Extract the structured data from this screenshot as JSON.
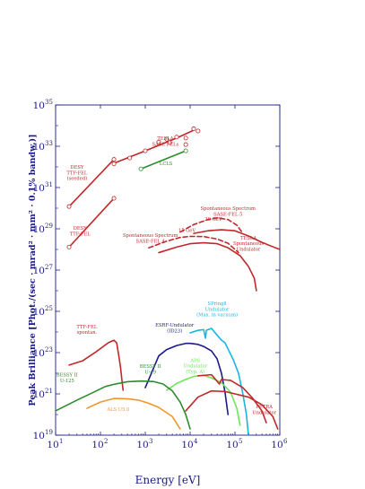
{
  "chart_data": {
    "type": "line",
    "title": "",
    "xlabel": "Energy [eV]",
    "ylabel": "Peak Brilliance [Phot./(sec · mrad² · mm² · 0.1% bandw.)]",
    "xscale": "log",
    "yscale": "log",
    "xlim": [
      10,
      1000000
    ],
    "ylim": [
      1e+19,
      1e+35
    ],
    "grid": false,
    "legend": "none",
    "x_ticks": [
      {
        "value": 10,
        "base": "10",
        "exp": "1"
      },
      {
        "value": 100,
        "base": "10",
        "exp": "2"
      },
      {
        "value": 1000,
        "base": "10",
        "exp": "3"
      },
      {
        "value": 10000,
        "base": "10",
        "exp": "4"
      },
      {
        "value": 100000,
        "base": "10",
        "exp": "5"
      },
      {
        "value": 1000000,
        "base": "10",
        "exp": "6"
      }
    ],
    "y_ticks": [
      {
        "value": 1e+19,
        "base": "10",
        "exp": "19"
      },
      {
        "value": 1e+21,
        "base": "10",
        "exp": "21"
      },
      {
        "value": 1e+23,
        "base": "10",
        "exp": "23"
      },
      {
        "value": 1e+25,
        "base": "10",
        "exp": "25"
      },
      {
        "value": 1e+27,
        "base": "10",
        "exp": "27"
      },
      {
        "value": 1e+29,
        "base": "10",
        "exp": "29"
      },
      {
        "value": 1e+31,
        "base": "10",
        "exp": "31"
      },
      {
        "value": 1e+33,
        "base": "10",
        "exp": "33"
      },
      {
        "value": 1e+35,
        "base": "10",
        "exp": "35"
      }
    ],
    "colors": {
      "axis": "#1a1a80",
      "red": "#c0282a",
      "green": "#2e8b2e",
      "navy": "#1a1a8c",
      "cyan": "#19b4e6",
      "lime": "#6ee65a",
      "orange": "#f0962d"
    },
    "series": [
      {
        "color": "red",
        "dashed": false,
        "markers": "none",
        "points": [
          [
            20,
            1.2e+30
          ],
          [
            200,
            2.3e+32
          ]
        ]
      },
      {
        "color": "red",
        "dashed": false,
        "markers": "circle",
        "points": [
          [
            20,
            1.2e+30
          ],
          [
            200,
            2.3e+32
          ]
        ]
      },
      {
        "color": "red",
        "dashed": false,
        "markers": "none",
        "points": [
          [
            20,
            1.3e+28
          ],
          [
            200,
            3e+30
          ]
        ]
      },
      {
        "color": "red",
        "dashed": false,
        "markers": "circle",
        "points": [
          [
            20,
            1.3e+28
          ],
          [
            200,
            3e+30
          ]
        ]
      },
      {
        "color": "red",
        "dashed": false,
        "markers": "none",
        "points": [
          [
            200,
            1.5e+32
          ],
          [
            1000,
            6e+32
          ],
          [
            5000,
            2.5e+33
          ],
          [
            12000,
            6e+33
          ]
        ]
      },
      {
        "color": "red",
        "dashed": false,
        "markers": "circle",
        "points": [
          [
            200,
            1.4e+32
          ],
          [
            450,
            2.7e+32
          ],
          [
            1000,
            6e+32
          ],
          [
            2000,
            1.6e+33
          ],
          [
            3000,
            2.2e+33
          ],
          [
            5000,
            2.8e+33
          ],
          [
            8000,
            2.5e+33
          ],
          [
            12000,
            7e+33
          ],
          [
            15000,
            5.5e+33
          ]
        ]
      },
      {
        "color": "red",
        "dashed": false,
        "markers": "circle",
        "points": [
          [
            3500,
            1.5e+33
          ],
          [
            8000,
            1.2e+33
          ]
        ]
      },
      {
        "color": "green",
        "dashed": false,
        "markers": "none",
        "points": [
          [
            800,
            8e+31
          ],
          [
            8000,
            6e+32
          ]
        ]
      },
      {
        "color": "green",
        "dashed": false,
        "markers": "circle",
        "points": [
          [
            800,
            8e+31
          ],
          [
            8000,
            6e+32
          ]
        ]
      },
      {
        "color": "red",
        "dashed": true,
        "markers": "none",
        "points": [
          [
            1200,
            1.2e+28
          ],
          [
            3000,
            2.5e+28
          ],
          [
            6000,
            3.8e+28
          ],
          [
            10000,
            4.3e+28
          ],
          [
            20000,
            4.2e+28
          ],
          [
            40000,
            3.2e+28
          ],
          [
            70000,
            2e+28
          ],
          [
            120000,
            7e+27
          ]
        ]
      },
      {
        "color": "red",
        "dashed": true,
        "markers": "none",
        "points": [
          [
            6000,
            7e+28
          ],
          [
            12000,
            1.6e+29
          ],
          [
            25000,
            2.8e+29
          ],
          [
            40000,
            3.4e+29
          ],
          [
            70000,
            2.8e+29
          ],
          [
            110000,
            1.5e+29
          ],
          [
            150000,
            6e+28
          ]
        ]
      },
      {
        "color": "red",
        "dashed": false,
        "markers": "none",
        "points": [
          [
            2000,
            7e+27
          ],
          [
            5000,
            1.3e+28
          ],
          [
            10000,
            1.9e+28
          ],
          [
            20000,
            2.1e+28
          ],
          [
            40000,
            1.9e+28
          ],
          [
            70000,
            1.2e+28
          ],
          [
            130000,
            5e+27
          ],
          [
            200000,
            1.5e+27
          ],
          [
            270000,
            4e+26
          ],
          [
            300000,
            1e+26
          ]
        ]
      },
      {
        "color": "red",
        "dashed": false,
        "markers": "none",
        "points": [
          [
            12000,
            6e+28
          ],
          [
            25000,
            8e+28
          ],
          [
            50000,
            9e+28
          ],
          [
            100000,
            8e+28
          ],
          [
            200000,
            4.5e+28
          ],
          [
            400000,
            2.2e+28
          ],
          [
            800000,
            1.2e+28
          ],
          [
            1000000,
            1e+28
          ]
        ]
      },
      {
        "color": "red",
        "dashed": false,
        "markers": "none",
        "points": [
          [
            20,
            2.5e+22
          ],
          [
            40,
            4e+22
          ],
          [
            80,
            1.1e+23
          ],
          [
            150,
            3e+23
          ],
          [
            200,
            4e+23
          ],
          [
            230,
            3e+23
          ],
          [
            250,
            1e+23
          ],
          [
            280,
            2e+22
          ],
          [
            300,
            5e+21
          ],
          [
            320,
            1.5e+21
          ]
        ]
      },
      {
        "color": "navy",
        "dashed": false,
        "markers": "none",
        "points": [
          [
            1000,
            2e+21
          ],
          [
            2000,
            7e+22
          ],
          [
            3000,
            1.4e+23
          ],
          [
            5000,
            2.2e+23
          ],
          [
            8000,
            2.8e+23
          ],
          [
            10000,
            2.8e+23
          ],
          [
            15000,
            2.5e+23
          ],
          [
            20000,
            2e+23
          ],
          [
            30000,
            1.2e+23
          ],
          [
            40000,
            5e+22
          ],
          [
            50000,
            1e+22
          ],
          [
            60000,
            1.2e+21
          ],
          [
            70000,
            1e+20
          ]
        ]
      },
      {
        "color": "cyan",
        "dashed": false,
        "markers": "none",
        "points": [
          [
            10000,
            9e+23
          ],
          [
            15000,
            1.2e+24
          ],
          [
            20000,
            1.3e+24
          ],
          [
            22000,
            5e+23
          ],
          [
            23000,
            1.2e+24
          ],
          [
            30000,
            1.5e+24
          ],
          [
            40000,
            7e+23
          ],
          [
            50000,
            4e+23
          ],
          [
            60000,
            3e+23
          ],
          [
            70000,
            1.5e+23
          ],
          [
            90000,
            5e+22
          ],
          [
            120000,
            1e+22
          ],
          [
            150000,
            1e+21
          ],
          [
            180000,
            1e+20
          ],
          [
            200000,
            1e+19
          ]
        ]
      },
      {
        "color": "lime",
        "dashed": false,
        "markers": "none",
        "points": [
          [
            3000,
            1.5e+21
          ],
          [
            5000,
            3.2e+21
          ],
          [
            8000,
            5e+21
          ],
          [
            12000,
            7e+21
          ],
          [
            20000,
            8e+21
          ],
          [
            30000,
            6e+21
          ],
          [
            50000,
            3.5e+21
          ],
          [
            80000,
            1.2e+21
          ],
          [
            110000,
            2e+20
          ],
          [
            130000,
            3e+19
          ]
        ]
      },
      {
        "color": "green",
        "dashed": false,
        "markers": "none",
        "points": [
          [
            10,
            1.5e+20
          ],
          [
            30,
            5e+20
          ],
          [
            70,
            1.2e+21
          ],
          [
            130,
            2.3e+21
          ],
          [
            200,
            2.9e+21
          ],
          [
            400,
            3.9e+21
          ],
          [
            800,
            4.2e+21
          ],
          [
            1500,
            4e+21
          ],
          [
            2500,
            3e+21
          ],
          [
            4000,
            1.4e+21
          ],
          [
            6000,
            4e+20
          ],
          [
            8000,
            1e+20
          ],
          [
            10000,
            2e+19
          ]
        ]
      },
      {
        "color": "orange",
        "dashed": false,
        "markers": "none",
        "points": [
          [
            50,
            2e+20
          ],
          [
            100,
            4e+20
          ],
          [
            200,
            6e+20
          ],
          [
            400,
            5.8e+20
          ],
          [
            700,
            5e+20
          ],
          [
            1200,
            3.5e+20
          ],
          [
            2000,
            2.2e+20
          ],
          [
            4000,
            8e+19
          ],
          [
            6000,
            2e+19
          ]
        ]
      },
      {
        "color": "red",
        "dashed": false,
        "markers": "none",
        "points": [
          [
            8000,
            1.5e+20
          ],
          [
            15000,
            7e+20
          ],
          [
            30000,
            1.4e+21
          ],
          [
            60000,
            1.3e+21
          ],
          [
            100000,
            1e+21
          ],
          [
            200000,
            7e+20
          ],
          [
            400000,
            3e+20
          ],
          [
            700000,
            8e+19
          ],
          [
            900000,
            2e+19
          ]
        ]
      },
      {
        "color": "red",
        "dashed": false,
        "markers": "none",
        "points": [
          [
            15000,
            7.5e+21
          ],
          [
            30000,
            8.5e+21
          ],
          [
            45000,
            3e+21
          ],
          [
            50000,
            5e+21
          ],
          [
            80000,
            4.5e+21
          ],
          [
            150000,
            2e+21
          ],
          [
            250000,
            6e+20
          ],
          [
            400000,
            1.5e+20
          ],
          [
            500000,
            4e+19
          ]
        ]
      }
    ],
    "annotations": [
      {
        "lines": [
          "TESLA",
          "SASE FELs"
        ],
        "color": "red",
        "x": 2800,
        "y": 2e+33
      },
      {
        "lines": [
          "LCLS"
        ],
        "color": "green",
        "x": 2900,
        "y": 1.2e+32
      },
      {
        "lines": [
          "DESY",
          "TTF-FEL",
          "(seeded)"
        ],
        "color": "red",
        "x": 30,
        "y": 8e+31
      },
      {
        "lines": [
          "DESY",
          "TTF-FEL"
        ],
        "color": "red",
        "x": 35,
        "y": 9e+28
      },
      {
        "lines": [
          "Spontaneous Spectrum",
          "SASE-FEL 5"
        ],
        "color": "red",
        "x": 70000,
        "y": 8e+29
      },
      {
        "lines": [
          "30 GeV"
        ],
        "color": "red",
        "x": 33000,
        "y": 2.5e+29
      },
      {
        "lines": [
          "15 GeV"
        ],
        "color": "red",
        "x": 8500,
        "y": 7e+28
      },
      {
        "lines": [
          "Spontaneous Spectrum",
          "SASE-FEL 4"
        ],
        "color": "red",
        "x": 1300,
        "y": 4e+28
      },
      {
        "lines": [
          "TESLA",
          "Spontaneous",
          "Undulator"
        ],
        "color": "red",
        "x": 200000,
        "y": 3e+28
      },
      {
        "lines": [
          "SPring8",
          "Undulator",
          "(Max. in vacuum)"
        ],
        "color": "cyan",
        "x": 40000,
        "y": 2e+25
      },
      {
        "lines": [
          "ESRF-Undulator",
          "(ID23)"
        ],
        "color": "navy",
        "x": 4500,
        "y": 1.8e+24
      },
      {
        "lines": [
          "TTF-FEL",
          "spontan."
        ],
        "color": "red",
        "x": 50,
        "y": 1.5e+24
      },
      {
        "lines": [
          "APS",
          "Undulator",
          "(Typ. A)"
        ],
        "color": "lime",
        "x": 13000,
        "y": 3.5e+22
      },
      {
        "lines": [
          "BESSY II",
          "U-49"
        ],
        "color": "green",
        "x": 1300,
        "y": 1.8e+22
      },
      {
        "lines": [
          "BESSY II",
          "U-125"
        ],
        "color": "green",
        "x": 18,
        "y": 7e+21
      },
      {
        "lines": [
          "ALS U5.0"
        ],
        "color": "orange",
        "x": 250,
        "y": 1.5e+20
      },
      {
        "lines": [
          "PETRA",
          "Undulator"
        ],
        "color": "red",
        "x": 450000,
        "y": 2e+20
      }
    ]
  }
}
